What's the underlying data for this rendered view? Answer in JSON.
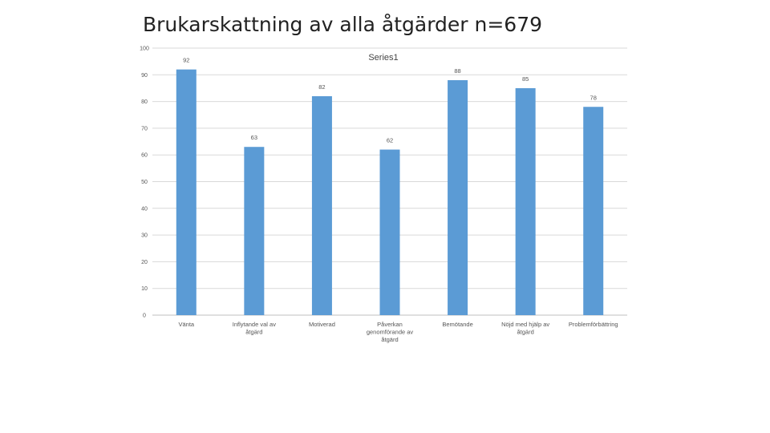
{
  "page_title": "Brukarskattning av alla åtgärder n=679",
  "chart_data": {
    "type": "bar",
    "title": "Brukarskattning av alla åtgärder n=679",
    "categories": [
      [
        "Vänta"
      ],
      [
        "Inflytande val av",
        "åtgärd"
      ],
      [
        "Motiverad"
      ],
      [
        "Påverkan",
        "genomförande av",
        "åtgärd"
      ],
      [
        "Bemötande"
      ],
      [
        "Nöjd med hjälp av",
        "åtgärd"
      ],
      [
        "Problemförbättring"
      ]
    ],
    "series": [
      {
        "name": "Series1",
        "values": [
          92,
          63,
          82,
          62,
          88,
          85,
          78
        ],
        "color": "#5b9bd5"
      }
    ],
    "ylim": [
      0,
      100
    ],
    "yticks": [
      0,
      10,
      20,
      30,
      40,
      50,
      60,
      70,
      80,
      90,
      100
    ],
    "grid": true,
    "legend_position": "top-center",
    "xlabel": "",
    "ylabel": ""
  }
}
